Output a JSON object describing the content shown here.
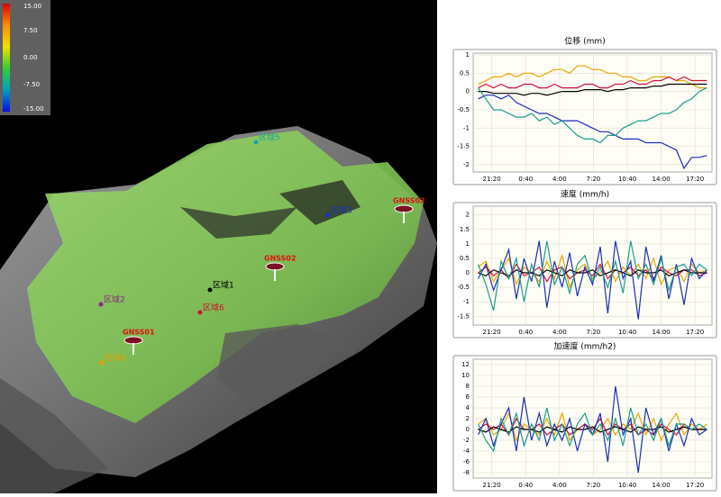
{
  "colorbar": {
    "ticks": [
      {
        "value": 15,
        "label": "15.00"
      },
      {
        "value": 7.5,
        "label": "7.50"
      },
      {
        "value": 0,
        "label": "0.00"
      },
      {
        "value": -7.5,
        "label": "-7.50"
      },
      {
        "value": -15,
        "label": "-15.00"
      }
    ],
    "colors": [
      "#e00000",
      "#ff8c00",
      "#f0e000",
      "#30d030",
      "#00a0c0",
      "#0010e0"
    ]
  },
  "regions": [
    {
      "label": "区域5",
      "color": "#18a8a0"
    },
    {
      "label": "区域3",
      "color": "#1830d0"
    },
    {
      "label": "区域1",
      "color": "#000000"
    },
    {
      "label": "区域2",
      "color": "#8a2a8a"
    },
    {
      "label": "区域6",
      "color": "#d01030"
    },
    {
      "label": "区域4",
      "color": "#e8a000"
    }
  ],
  "gnss": [
    "GNSS03",
    "GNSS02",
    "GNSS01"
  ],
  "chart_data": [
    {
      "type": "line",
      "title": "位移 (mm)",
      "x": [
        20,
        20.75,
        21.5,
        22.25,
        23,
        23.75,
        24.5,
        25.25,
        26,
        26.75,
        27.5,
        28.25,
        29,
        29.75,
        30.5,
        31.25,
        32,
        32.75,
        33.5,
        34.25,
        35,
        35.75,
        36.5,
        37.25,
        38,
        38.75,
        39.5,
        40.25,
        41,
        41.75,
        42.5
      ],
      "xlim": [
        19.5,
        43
      ],
      "xticks": [
        {
          "value": 21.33,
          "label": "21:20"
        },
        {
          "value": 24.67,
          "label": "0:40"
        },
        {
          "value": 28,
          "label": "4:00"
        },
        {
          "value": 31.33,
          "label": "7:20"
        },
        {
          "value": 34.67,
          "label": "10:40"
        },
        {
          "value": 38,
          "label": "14:00"
        },
        {
          "value": 41.33,
          "label": "17:20"
        }
      ],
      "ylim": [
        -2.2,
        1.05
      ],
      "yticks": [
        1,
        0.5,
        0,
        -0.5,
        -1,
        -1.5,
        -2
      ],
      "grid": true,
      "series": [
        {
          "color": "#e8a600",
          "values": [
            0.2,
            0.3,
            0.4,
            0.4,
            0.5,
            0.4,
            0.5,
            0.5,
            0.4,
            0.5,
            0.6,
            0.6,
            0.5,
            0.7,
            0.7,
            0.6,
            0.6,
            0.5,
            0.5,
            0.4,
            0.4,
            0.3,
            0.3,
            0.4,
            0.4,
            0.4,
            0.3,
            0.3,
            0.2,
            0.1,
            0.1
          ]
        },
        {
          "color": "#d0103a",
          "values": [
            0.1,
            0.2,
            0.1,
            0.2,
            0.1,
            0.1,
            0.2,
            0.2,
            0.1,
            0.1,
            0.2,
            0.1,
            0.1,
            0.1,
            0.2,
            0.2,
            0.1,
            0.1,
            0.2,
            0.2,
            0.3,
            0.2,
            0.2,
            0.3,
            0.3,
            0.4,
            0.3,
            0.4,
            0.3,
            0.3,
            0.3
          ]
        },
        {
          "color": "#000000",
          "values": [
            0,
            0,
            -0.05,
            -0.05,
            -0.05,
            -0.05,
            -0.1,
            -0.05,
            -0.05,
            -0.1,
            -0.05,
            0,
            0,
            0,
            0.05,
            0.05,
            0.05,
            0,
            0.05,
            0.05,
            0.1,
            0.1,
            0.1,
            0.15,
            0.15,
            0.2,
            0.2,
            0.2,
            0.2,
            0.2,
            0.2
          ]
        },
        {
          "color": "#1a2fb8",
          "values": [
            -0.2,
            -0.1,
            -0.1,
            -0.2,
            -0.1,
            -0.3,
            -0.4,
            -0.5,
            -0.6,
            -0.6,
            -0.7,
            -0.8,
            -0.8,
            -0.8,
            -0.9,
            -1,
            -1.1,
            -1.1,
            -1.2,
            -1.3,
            -1.3,
            -1.3,
            -1.4,
            -1.4,
            -1.4,
            -1.5,
            -1.6,
            -2.1,
            -1.8,
            -1.8,
            -1.75
          ]
        },
        {
          "color": "#1a9c8c",
          "values": [
            0.1,
            -0.2,
            -0.5,
            -0.5,
            -0.6,
            -0.7,
            -0.7,
            -0.6,
            -0.8,
            -0.7,
            -0.9,
            -0.8,
            -1,
            -1.2,
            -1.3,
            -1.3,
            -1.4,
            -1.2,
            -1.2,
            -1,
            -0.9,
            -0.8,
            -0.8,
            -0.7,
            -0.6,
            -0.6,
            -0.5,
            -0.3,
            -0.2,
            0,
            0.1
          ]
        }
      ]
    },
    {
      "type": "line",
      "title": "速度 (mm/h)",
      "x": [
        20,
        20.75,
        21.5,
        22.25,
        23,
        23.75,
        24.5,
        25.25,
        26,
        26.75,
        27.5,
        28.25,
        29,
        29.75,
        30.5,
        31.25,
        32,
        32.75,
        33.5,
        34.25,
        35,
        35.75,
        36.5,
        37.25,
        38,
        38.75,
        39.5,
        40.25,
        41,
        41.75,
        42.5
      ],
      "xlim": [
        19.5,
        43
      ],
      "xticks": [
        {
          "value": 21.33,
          "label": "21:20"
        },
        {
          "value": 24.67,
          "label": "0:40"
        },
        {
          "value": 28,
          "label": "4:00"
        },
        {
          "value": 31.33,
          "label": "7:20"
        },
        {
          "value": 34.67,
          "label": "10:40"
        },
        {
          "value": 38,
          "label": "14:00"
        },
        {
          "value": 41.33,
          "label": "17:20"
        }
      ],
      "ylim": [
        -1.8,
        2.3
      ],
      "yticks": [
        2,
        1.5,
        1,
        0.5,
        0,
        -0.5,
        -1,
        -1.5
      ],
      "grid": true,
      "series": [
        {
          "color": "#e8a600",
          "values": [
            0.2,
            0.4,
            -0.3,
            0.1,
            0.5,
            -0.4,
            0.2,
            0,
            -0.3,
            0.4,
            -0.2,
            0.6,
            -0.5,
            0.1,
            0.3,
            -0.2,
            0,
            0.4,
            -0.3,
            0.2,
            -0.1,
            0.3,
            -0.2,
            0.5,
            -0.4,
            0.1,
            0.2,
            -0.3,
            0.3,
            0,
            0.1
          ]
        },
        {
          "color": "#d0103a",
          "values": [
            0,
            0.2,
            -0.1,
            0.1,
            -0.2,
            0.3,
            -0.1,
            0,
            0.2,
            -0.3,
            0.1,
            0.2,
            -0.2,
            0,
            0.1,
            -0.1,
            0.3,
            -0.2,
            0.1,
            0,
            0.2,
            -0.1,
            0.1,
            -0.2,
            0.2,
            0,
            -0.1,
            0.1,
            0.1,
            -0.1,
            0
          ]
        },
        {
          "color": "#000000",
          "values": [
            0,
            -0.1,
            0.1,
            0,
            -0.1,
            0.1,
            0,
            0,
            -0.1,
            0.1,
            0,
            -0.1,
            0.1,
            0,
            0,
            0.1,
            -0.1,
            0,
            0.1,
            0,
            -0.1,
            0.1,
            0,
            0,
            0.1,
            -0.1,
            0,
            0.1,
            0,
            0,
            0
          ]
        },
        {
          "color": "#1a2fb8",
          "values": [
            -0.2,
            0.3,
            -0.6,
            0.1,
            0.8,
            -0.9,
            0.5,
            -0.3,
            1.1,
            -1.2,
            0.4,
            -0.5,
            0.7,
            -0.8,
            0.2,
            -0.4,
            0.9,
            -1.4,
            1.1,
            -0.2,
            0.4,
            -1.6,
            0.9,
            -0.3,
            0.6,
            -0.9,
            0.3,
            -1.1,
            0.5,
            -0.2,
            0.1
          ]
        },
        {
          "color": "#1a9c8c",
          "values": [
            0.3,
            -0.4,
            -1.3,
            0.4,
            -0.2,
            0.5,
            -1,
            0.3,
            -0.5,
            1.1,
            -0.4,
            0.2,
            -0.7,
            0.3,
            0.6,
            -0.3,
            0.2,
            -0.5,
            0.4,
            -0.7,
            1.1,
            -0.2,
            0.3,
            -0.4,
            0.5,
            -0.6,
            0.2,
            0.3,
            -0.1,
            0.3,
            0.1
          ]
        }
      ]
    },
    {
      "type": "line",
      "title": "加速度 (mm/h2)",
      "x": [
        20,
        20.75,
        21.5,
        22.25,
        23,
        23.75,
        24.5,
        25.25,
        26,
        26.75,
        27.5,
        28.25,
        29,
        29.75,
        30.5,
        31.25,
        32,
        32.75,
        33.5,
        34.25,
        35,
        35.75,
        36.5,
        37.25,
        38,
        38.75,
        39.5,
        40.25,
        41,
        41.75,
        42.5
      ],
      "xlim": [
        19.5,
        43
      ],
      "xticks": [
        {
          "value": 21.33,
          "label": "21:20"
        },
        {
          "value": 24.67,
          "label": "0:40"
        },
        {
          "value": 28,
          "label": "4:00"
        },
        {
          "value": 31.33,
          "label": "7:20"
        },
        {
          "value": 34.67,
          "label": "10:40"
        },
        {
          "value": 38,
          "label": "14:00"
        },
        {
          "value": 41.33,
          "label": "17:20"
        }
      ],
      "ylim": [
        -9,
        13
      ],
      "yticks": [
        12,
        10,
        8,
        6,
        4,
        2,
        0,
        -2,
        -4,
        -6,
        -8
      ],
      "grid": true,
      "series": [
        {
          "color": "#e8a600",
          "values": [
            1,
            2,
            -1,
            0,
            3,
            -2,
            1,
            0,
            -1,
            2,
            -1,
            3,
            -2,
            0,
            1,
            -1,
            0,
            2,
            -1,
            1,
            0,
            3,
            -1,
            2,
            -2,
            1,
            3,
            -1,
            1,
            0,
            1
          ]
        },
        {
          "color": "#d0103a",
          "values": [
            0,
            1,
            0,
            1,
            -1,
            2,
            0,
            0,
            1,
            -1,
            0,
            1,
            -1,
            0,
            1,
            0,
            2,
            -1,
            1,
            0,
            1,
            -1,
            0,
            -1,
            1,
            0,
            -1,
            1,
            0,
            0,
            0
          ]
        },
        {
          "color": "#000000",
          "values": [
            0,
            -0.5,
            0.5,
            0,
            -0.5,
            0.5,
            0,
            0,
            -0.5,
            0.5,
            0,
            -0.5,
            0.5,
            0,
            0,
            0.5,
            -0.5,
            0,
            0.5,
            0,
            -0.5,
            0.5,
            0,
            0,
            0.5,
            -0.5,
            0,
            0.5,
            0,
            0,
            0
          ]
        },
        {
          "color": "#1a2fb8",
          "values": [
            -1,
            2,
            -3,
            1,
            4,
            -4,
            6,
            -2,
            3,
            -3,
            1,
            -2,
            2,
            -4,
            1,
            -1,
            3,
            -6,
            8,
            -1,
            2,
            -8,
            4,
            -1,
            2,
            -4,
            1,
            -3,
            2,
            -1,
            0
          ]
        },
        {
          "color": "#1a9c8c",
          "values": [
            1,
            -2,
            -4,
            2,
            -1,
            3,
            -3,
            1,
            -2,
            4,
            -2,
            1,
            -3,
            1,
            3,
            -1,
            1,
            -2,
            2,
            -3,
            4,
            -1,
            1,
            -2,
            2,
            -3,
            1,
            1,
            0,
            1,
            0
          ]
        }
      ]
    }
  ]
}
